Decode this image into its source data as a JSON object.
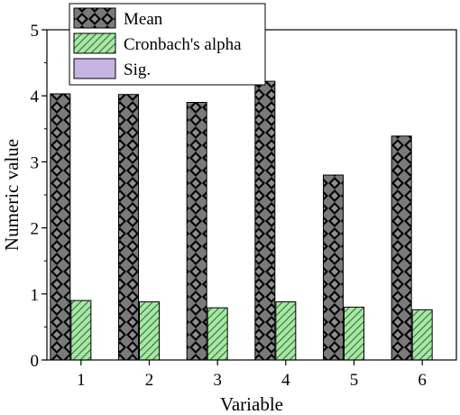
{
  "chart_data": {
    "type": "bar",
    "categories": [
      "1",
      "2",
      "3",
      "4",
      "5",
      "6"
    ],
    "series": [
      {
        "name": "Mean",
        "values": [
          4.03,
          4.02,
          3.9,
          4.22,
          2.8,
          3.39
        ]
      },
      {
        "name": "Cronbach's alpha",
        "values": [
          0.9,
          0.88,
          0.79,
          0.88,
          0.8,
          0.76
        ]
      },
      {
        "name": "Sig.",
        "values": [
          0,
          0,
          0,
          0,
          0,
          0
        ]
      }
    ],
    "title": "",
    "xlabel": "Variable",
    "ylabel": "Numeric value",
    "ylim": [
      0,
      5
    ],
    "yticks": [
      "0",
      "1",
      "2",
      "3",
      "4",
      "5"
    ],
    "grid": false,
    "legend_position": "top",
    "colors": {
      "mean_fill": "#7a7a7a",
      "mean_pattern": "#000000",
      "alpha_fill": "#a8e6a8",
      "alpha_pattern": "#2b6b2b",
      "sig_fill": "#c8b4e0"
    }
  }
}
